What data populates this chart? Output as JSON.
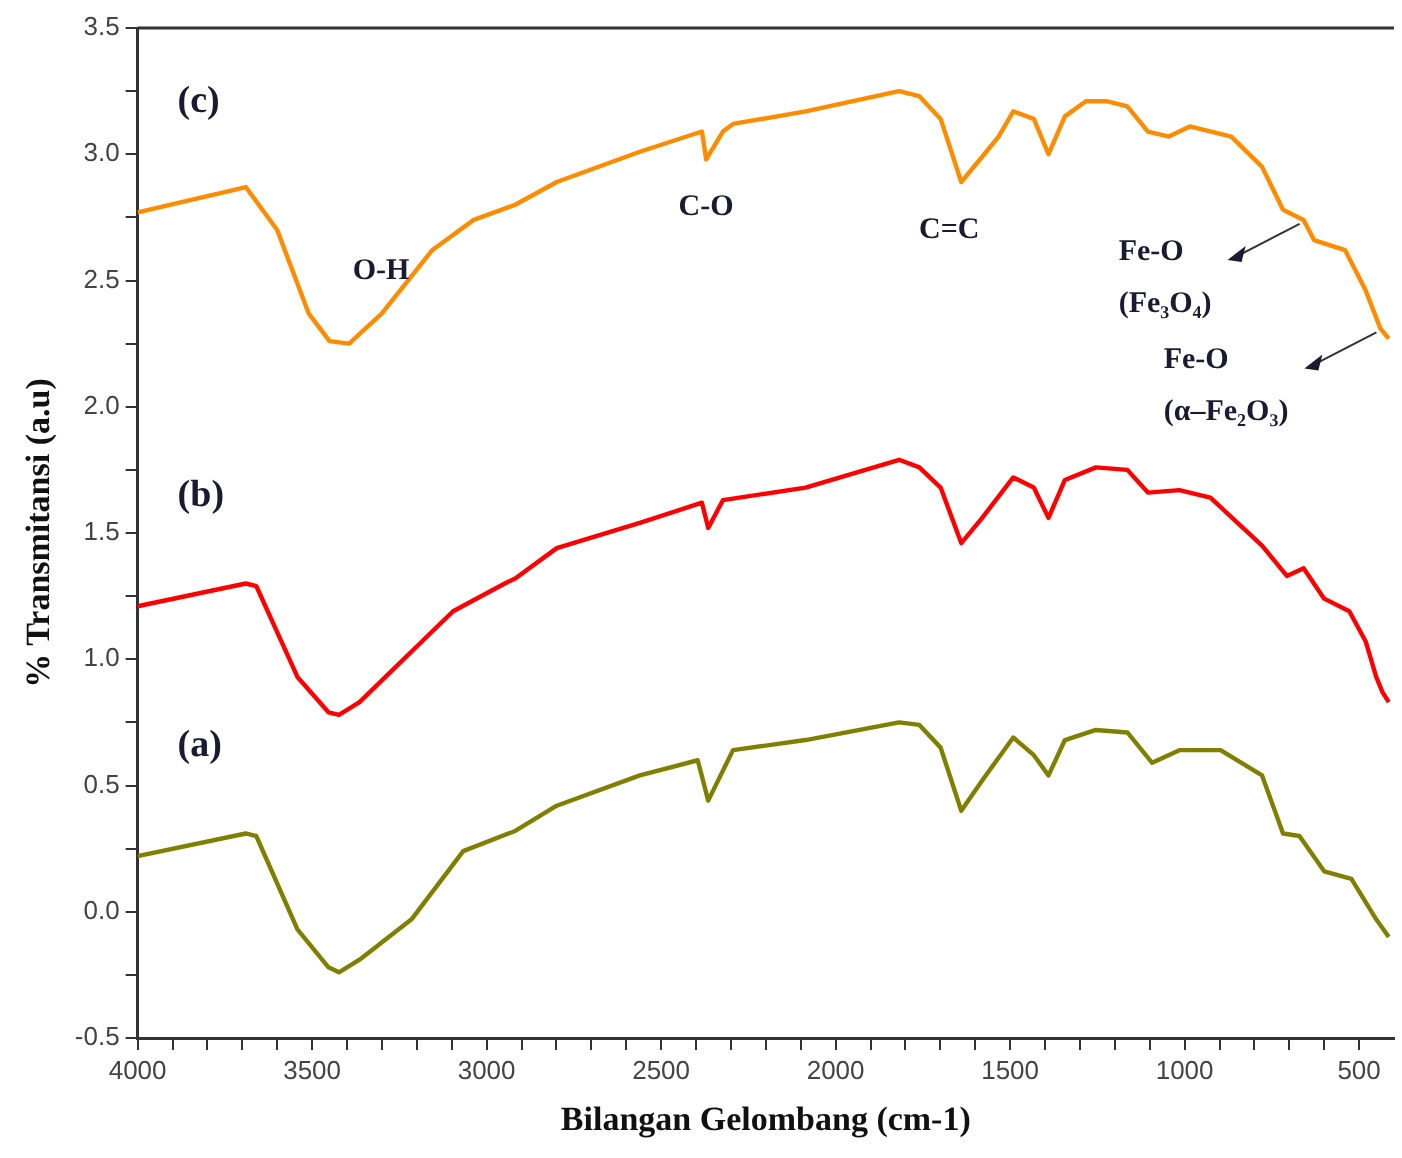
{
  "chart_data": {
    "type": "line",
    "xlabel": "Bilangan Gelombang (cm-1)",
    "ylabel": "% Transmitansi (a.u)",
    "xlim": [
      4000,
      400
    ],
    "xticks": [
      4000,
      {
        "value": 3900,
        "label": null
      },
      {
        "value": 3800,
        "label": null
      },
      {
        "value": 3700,
        "label": null
      },
      {
        "value": 3600,
        "label": null
      },
      3500,
      {
        "value": 3400,
        "label": null
      },
      {
        "value": 3300,
        "label": null
      },
      {
        "value": 3200,
        "label": null
      },
      {
        "value": 3100,
        "label": null
      },
      3000,
      {
        "value": 2900,
        "label": null
      },
      {
        "value": 2800,
        "label": null
      },
      {
        "value": 2700,
        "label": null
      },
      {
        "value": 2600,
        "label": null
      },
      2500,
      {
        "value": 2400,
        "label": null
      },
      {
        "value": 2300,
        "label": null
      },
      {
        "value": 2200,
        "label": null
      },
      {
        "value": 2100,
        "label": null
      },
      2000,
      {
        "value": 1900,
        "label": null
      },
      {
        "value": 1800,
        "label": null
      },
      {
        "value": 1700,
        "label": null
      },
      {
        "value": 1600,
        "label": null
      },
      1500,
      {
        "value": 1400,
        "label": null
      },
      {
        "value": 1300,
        "label": null
      },
      {
        "value": 1200,
        "label": null
      },
      {
        "value": 1100,
        "label": null
      },
      1000,
      {
        "value": 900,
        "label": null
      },
      {
        "value": 800,
        "label": null
      },
      {
        "value": 700,
        "label": null
      },
      {
        "value": 600,
        "label": null
      },
      500
    ],
    "ylim": [
      -0.5,
      3.5
    ],
    "yticks": [
      {
        "value": -0.5,
        "label": "-0.5"
      },
      {
        "value": -0.25,
        "label": null
      },
      {
        "value": 0,
        "label": "0.0"
      },
      {
        "value": 0.25,
        "label": null
      },
      0.5,
      {
        "value": 0.75,
        "label": null
      },
      {
        "value": 1,
        "label": "1.0"
      },
      {
        "value": 1.25,
        "label": null
      },
      1.5,
      {
        "value": 1.75,
        "label": null
      },
      {
        "value": 2,
        "label": "2.0"
      },
      {
        "value": 2.25,
        "label": null
      },
      2.5,
      {
        "value": 2.75,
        "label": null
      },
      {
        "value": 3,
        "label": "3.0"
      },
      {
        "value": 3.25,
        "label": null
      },
      3.5
    ],
    "grid": false,
    "legend": false,
    "marker": "none",
    "line_style": "solid",
    "series": [
      {
        "name": "(a)",
        "color": "#808000",
        "x": [
          4000,
          3690,
          3660,
          3542,
          3453,
          3423,
          3364,
          3215,
          3067,
          2918,
          2799,
          2561,
          2395,
          2365,
          2294,
          2086,
          1818,
          1760,
          1699,
          1640,
          1580,
          1491,
          1432,
          1390,
          1343,
          1254,
          1164,
          1093,
          1015,
          897,
          778,
          718,
          671,
          600,
          522,
          451,
          415
        ],
        "values": [
          0.22,
          0.31,
          0.3,
          -0.07,
          -0.22,
          -0.24,
          -0.19,
          -0.03,
          0.24,
          0.32,
          0.42,
          0.54,
          0.6,
          0.44,
          0.64,
          0.68,
          0.75,
          0.74,
          0.65,
          0.4,
          0.52,
          0.69,
          0.62,
          0.54,
          0.68,
          0.72,
          0.71,
          0.59,
          0.64,
          0.64,
          0.54,
          0.31,
          0.3,
          0.16,
          0.13,
          -0.03,
          -0.1
        ]
      },
      {
        "name": "(b)",
        "color": "#ff0000",
        "x": [
          4000,
          3690,
          3660,
          3542,
          3453,
          3423,
          3364,
          3275,
          3096,
          2948,
          2918,
          2799,
          2561,
          2383,
          2365,
          2323,
          2086,
          1818,
          1760,
          1699,
          1640,
          1580,
          1491,
          1432,
          1390,
          1343,
          1254,
          1164,
          1105,
          1015,
          926,
          778,
          707,
          659,
          600,
          528,
          481,
          451,
          433,
          415
        ],
        "values": [
          1.21,
          1.3,
          1.29,
          0.93,
          0.79,
          0.78,
          0.83,
          0.95,
          1.19,
          1.3,
          1.32,
          1.44,
          1.54,
          1.62,
          1.52,
          1.63,
          1.68,
          1.79,
          1.76,
          1.68,
          1.46,
          1.56,
          1.72,
          1.68,
          1.56,
          1.71,
          1.76,
          1.75,
          1.66,
          1.67,
          1.64,
          1.45,
          1.33,
          1.36,
          1.24,
          1.19,
          1.07,
          0.93,
          0.87,
          0.83
        ]
      },
      {
        "name": "(c)",
        "color": "#ff8c00",
        "x": [
          4000,
          3720,
          3690,
          3600,
          3510,
          3450,
          3394,
          3300,
          3156,
          3037,
          2918,
          2799,
          2561,
          2383,
          2371,
          2323,
          2294,
          2086,
          1818,
          1760,
          1699,
          1640,
          1580,
          1533,
          1491,
          1432,
          1390,
          1343,
          1283,
          1224,
          1164,
          1105,
          1045,
          985,
          866,
          778,
          718,
          659,
          629,
          540,
          481,
          439,
          415
        ],
        "values": [
          2.77,
          2.86,
          2.87,
          2.7,
          2.37,
          2.26,
          2.25,
          2.37,
          2.62,
          2.74,
          2.8,
          2.89,
          3.01,
          3.09,
          2.98,
          3.09,
          3.12,
          3.17,
          3.25,
          3.23,
          3.14,
          2.89,
          2.99,
          3.07,
          3.17,
          3.14,
          3.0,
          3.15,
          3.21,
          3.21,
          3.19,
          3.09,
          3.07,
          3.11,
          3.07,
          2.95,
          2.78,
          2.74,
          2.66,
          2.62,
          2.46,
          2.31,
          2.27
        ]
      }
    ],
    "annotations": [
      {
        "text": "O-H",
        "x": 3394,
        "y": 2.25
      },
      {
        "text": "C-O",
        "x": 2371,
        "y": 2.98
      },
      {
        "text": "C=C",
        "x": 1640,
        "y": 2.89
      },
      {
        "text": "Fe-O\n(Fe₃O₄)",
        "x": 659,
        "y": 2.74
      },
      {
        "text": "Fe-O\n(α–Fe₂O₃)",
        "x": 439,
        "y": 2.31
      }
    ]
  }
}
